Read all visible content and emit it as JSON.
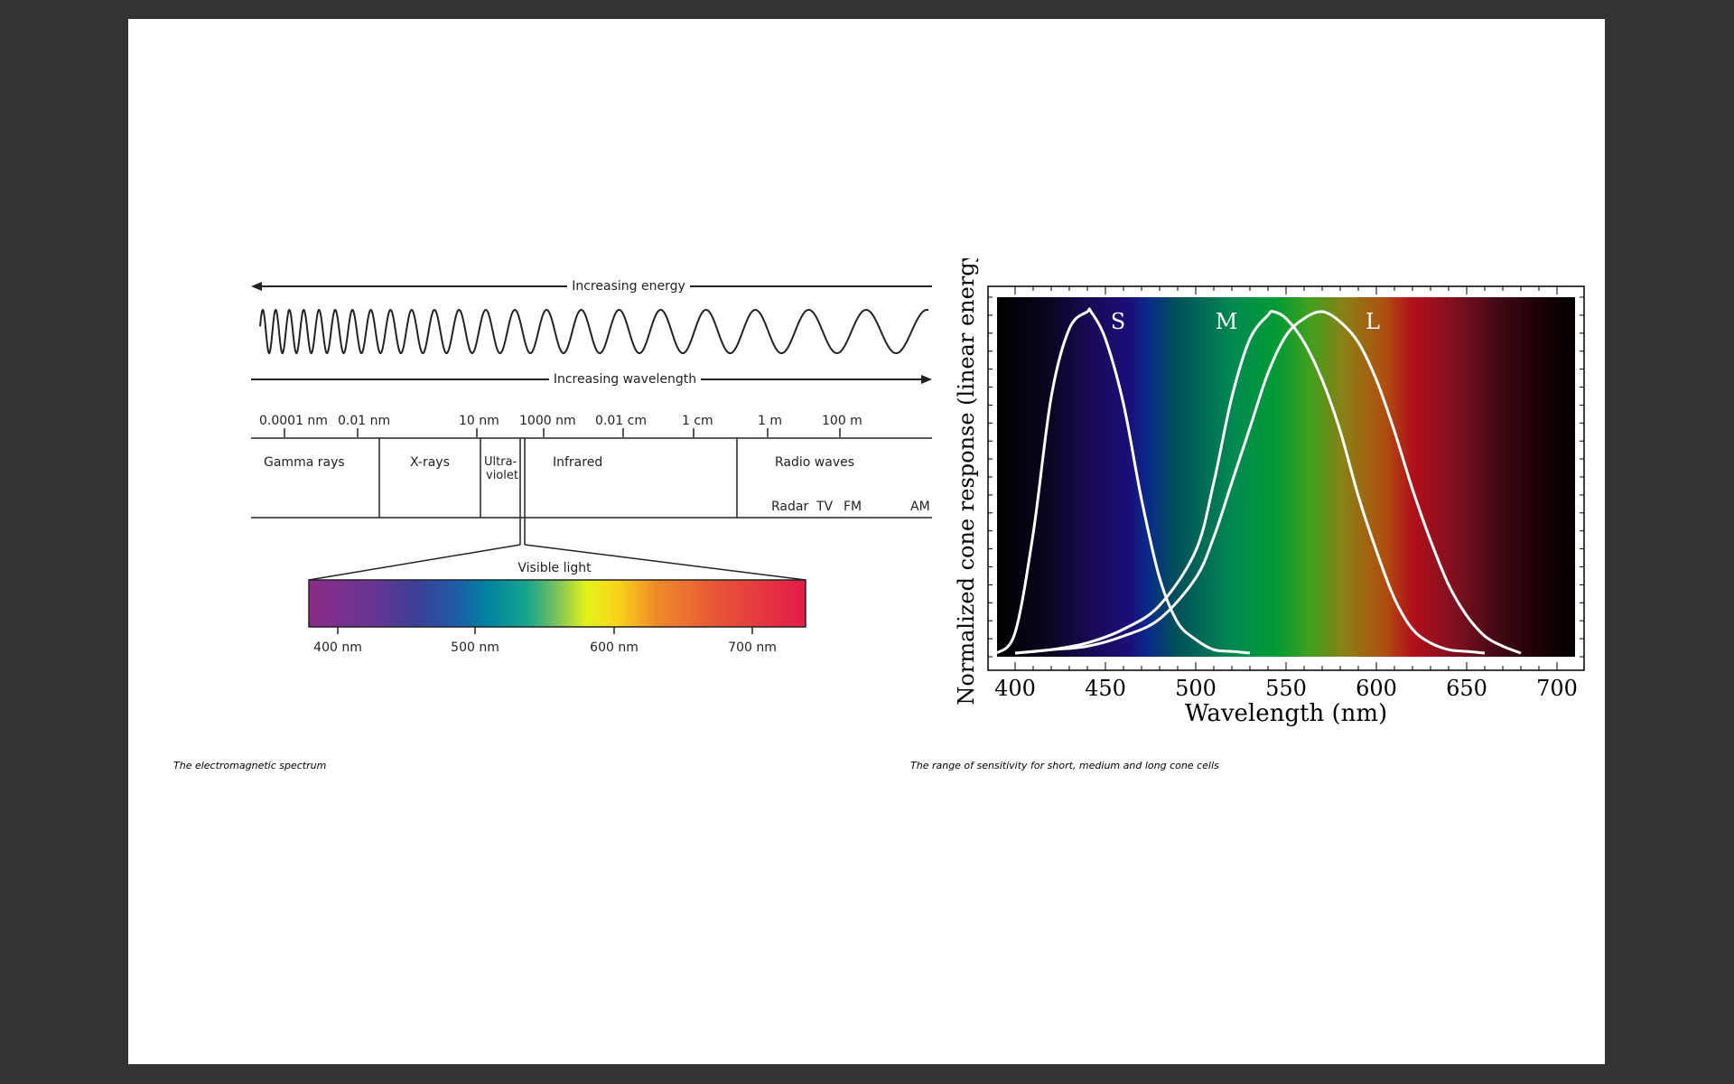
{
  "em": {
    "energy_label": "Increasing energy",
    "wavelength_label": "Increasing wavelength",
    "scale": [
      "0.0001 nm",
      "0.01 nm",
      "10 nm",
      "1000 nm",
      "0.01 cm",
      "1 cm",
      "1 m",
      "100 m"
    ],
    "regions": {
      "gamma": "Gamma rays",
      "xrays": "X-rays",
      "uv1": "Ultra-",
      "uv2": "violet",
      "infrared": "Infrared",
      "radio": "Radio waves"
    },
    "radio_bands": {
      "radar": "Radar",
      "tv": "TV",
      "fm": "FM",
      "am": "AM"
    },
    "visible_label": "Visible light",
    "visible_ticks": [
      "400 nm",
      "500 nm",
      "600 nm",
      "700 nm"
    ],
    "caption": "The electromagnetic spectrum"
  },
  "cone": {
    "caption": "The range of sensitivity for short, medium and long cone cells"
  },
  "chart_data": {
    "type": "line",
    "title": "",
    "xlabel": "Wavelength (nm)",
    "ylabel": "Normalized cone response (linear energy)",
    "xlim": [
      390,
      710
    ],
    "ylim": [
      0,
      1
    ],
    "x_ticks": [
      400,
      450,
      500,
      550,
      600,
      650,
      700
    ],
    "grid": false,
    "legend": "none",
    "series": [
      {
        "name": "S",
        "peak_nm": 442,
        "x": [
          390,
          400,
          410,
          420,
          430,
          440,
          442,
          450,
          460,
          470,
          480,
          490,
          500,
          510,
          520,
          530
        ],
        "y": [
          0.0,
          0.06,
          0.35,
          0.75,
          0.95,
          1.0,
          1.0,
          0.92,
          0.73,
          0.45,
          0.22,
          0.09,
          0.04,
          0.01,
          0.005,
          0.0
        ]
      },
      {
        "name": "M",
        "peak_nm": 543,
        "x": [
          400,
          420,
          440,
          460,
          480,
          500,
          510,
          520,
          530,
          540,
          543,
          550,
          560,
          570,
          580,
          590,
          600,
          610,
          620,
          630,
          640,
          650,
          660
        ],
        "y": [
          0.0,
          0.01,
          0.03,
          0.07,
          0.14,
          0.3,
          0.5,
          0.75,
          0.92,
          0.99,
          1.0,
          0.98,
          0.91,
          0.8,
          0.65,
          0.46,
          0.3,
          0.16,
          0.07,
          0.03,
          0.01,
          0.005,
          0.0
        ]
      },
      {
        "name": "L",
        "peak_nm": 570,
        "x": [
          400,
          420,
          440,
          460,
          480,
          500,
          510,
          520,
          530,
          540,
          550,
          560,
          570,
          580,
          590,
          600,
          610,
          620,
          630,
          640,
          650,
          660,
          670,
          680
        ],
        "y": [
          0.0,
          0.01,
          0.02,
          0.05,
          0.1,
          0.22,
          0.34,
          0.5,
          0.66,
          0.82,
          0.93,
          0.98,
          1.0,
          0.97,
          0.91,
          0.8,
          0.65,
          0.48,
          0.33,
          0.2,
          0.11,
          0.05,
          0.02,
          0.0
        ]
      }
    ],
    "colors": {
      "curve": "#ffffff",
      "frame": "#000000",
      "plot_bg": "#000000"
    }
  }
}
